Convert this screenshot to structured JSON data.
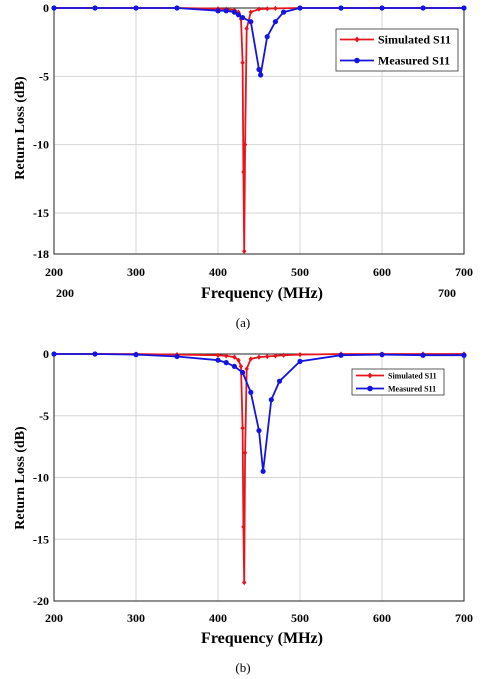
{
  "chart_data": [
    {
      "type": "line",
      "panel": "(a)",
      "xlabel": "Frequency (MHz)",
      "ylabel": "Return Loss (dB)",
      "xlim": [
        200,
        700
      ],
      "ylim": [
        -18,
        0
      ],
      "xticks": [
        200,
        300,
        400,
        500,
        600,
        700
      ],
      "yticks": [
        0,
        -5,
        -10,
        -15,
        -18
      ],
      "grid": true,
      "legend_position": "top-right",
      "extra_labels": [
        "200",
        "700"
      ],
      "series": [
        {
          "name": "Simulated S11",
          "color": "#e8141b",
          "marker": "diamond",
          "x": [
            200,
            250,
            300,
            350,
            400,
            410,
            420,
            425,
            428,
            430,
            431,
            432,
            433,
            435,
            440,
            450,
            460,
            470,
            500,
            550,
            600,
            650,
            700
          ],
          "y": [
            0,
            0,
            0,
            0,
            -0.05,
            -0.08,
            -0.15,
            -0.3,
            -0.8,
            -4,
            -12,
            -17.8,
            -10,
            -1.5,
            -0.3,
            -0.08,
            -0.05,
            -0.03,
            0,
            0,
            0,
            0,
            0
          ]
        },
        {
          "name": "Measured S11",
          "color": "#1414e0",
          "marker": "circle",
          "x": [
            200,
            250,
            300,
            350,
            400,
            410,
            420,
            425,
            430,
            440,
            450,
            452,
            460,
            470,
            480,
            500,
            550,
            600,
            650,
            700
          ],
          "y": [
            0,
            0,
            0,
            0,
            -0.2,
            -0.2,
            -0.3,
            -0.5,
            -0.7,
            -1.0,
            -4.5,
            -4.9,
            -2.1,
            -1.0,
            -0.3,
            0,
            0,
            0,
            0,
            0
          ]
        }
      ]
    },
    {
      "type": "line",
      "panel": "(b)",
      "xlabel": "Frequency (MHz)",
      "ylabel": "Return Loss (dB)",
      "xlim": [
        200,
        700
      ],
      "ylim": [
        -20,
        0
      ],
      "xticks": [
        200,
        300,
        400,
        500,
        600,
        700
      ],
      "yticks": [
        0,
        -5,
        -10,
        -15,
        -20
      ],
      "grid": true,
      "legend_position": "top-right",
      "series": [
        {
          "name": "Simulated S11",
          "color": "#e8141b",
          "marker": "diamond",
          "x": [
            200,
            250,
            300,
            350,
            400,
            410,
            420,
            425,
            428,
            430,
            431,
            432,
            433,
            435,
            440,
            450,
            460,
            470,
            480,
            500,
            550,
            600,
            650,
            700
          ],
          "y": [
            0,
            0,
            0,
            -0.05,
            -0.1,
            -0.15,
            -0.25,
            -0.5,
            -1,
            -6,
            -14,
            -18.5,
            -8,
            -1.2,
            -0.4,
            -0.25,
            -0.2,
            -0.15,
            -0.1,
            -0.05,
            0,
            0,
            0,
            0
          ]
        },
        {
          "name": "Measured S11",
          "color": "#1414e0",
          "marker": "circle",
          "x": [
            200,
            250,
            300,
            350,
            400,
            410,
            420,
            430,
            440,
            450,
            455,
            465,
            475,
            500,
            550,
            600,
            650,
            700
          ],
          "y": [
            0,
            0,
            -0.05,
            -0.2,
            -0.5,
            -0.7,
            -1.0,
            -1.5,
            -3.1,
            -6.2,
            -9.5,
            -3.7,
            -2.2,
            -0.6,
            -0.1,
            -0.05,
            -0.1,
            -0.1
          ]
        }
      ]
    }
  ]
}
